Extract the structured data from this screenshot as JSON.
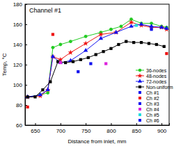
{
  "chart_data": {
    "type": "line",
    "title": "Channel #1",
    "x_label": "Distance from inlet, mm",
    "y_label": "Temp, °C",
    "xlim": [
      630,
      915
    ],
    "xticks": [
      650,
      700,
      750,
      800,
      850,
      900
    ],
    "ylim": [
      60,
      180
    ],
    "yticks": [
      60,
      80,
      100,
      120,
      140,
      160,
      180
    ],
    "legend": "lower right",
    "series": [
      {
        "name": "36-nodes",
        "type": "line",
        "color": "#22cc22",
        "marker": "circle",
        "line_style": "solid",
        "x": [
          635,
          660,
          675,
          685,
          700,
          720,
          750,
          780,
          800,
          820,
          840,
          860,
          880,
          900,
          910
        ],
        "values": [
          88,
          90,
          92,
          137,
          140,
          143,
          148,
          152,
          155,
          158,
          165,
          161,
          161,
          158,
          157
        ]
      },
      {
        "name": "48-nodes",
        "type": "line",
        "color": "#ee1111",
        "marker": "star",
        "line_style": "solid",
        "x": [
          635,
          660,
          675,
          685,
          700,
          720,
          750,
          780,
          810,
          840,
          860,
          880,
          900,
          910
        ],
        "values": [
          88,
          89,
          95,
          128,
          125,
          132,
          141,
          150,
          152,
          162,
          159,
          157,
          157,
          155
        ]
      },
      {
        "name": "72-nodes",
        "type": "line",
        "color": "#1111ee",
        "marker": "triangle",
        "line_style": "solid",
        "x": [
          635,
          660,
          675,
          685,
          700,
          720,
          750,
          780,
          810,
          840,
          860,
          880,
          900,
          910
        ],
        "values": [
          88,
          90,
          95,
          128,
          122,
          124,
          134,
          146,
          152,
          158,
          160,
          158,
          157,
          156
        ]
      },
      {
        "name": "Non-uniform",
        "type": "line",
        "color": "#000000",
        "marker": "square",
        "line_style": "solid",
        "x": [
          635,
          650,
          665,
          680,
          695,
          710,
          725,
          740,
          755,
          770,
          785,
          800,
          815,
          830,
          845,
          860,
          875,
          890,
          905
        ],
        "values": [
          88,
          88,
          95,
          103,
          123,
          122,
          123,
          125,
          127,
          130,
          133,
          136,
          140,
          143,
          142,
          142,
          141,
          140,
          138
        ]
      },
      {
        "name": "Ch #1",
        "type": "scatter",
        "color": "#1111ee",
        "marker": "square",
        "x": [
          735
        ],
        "values": [
          113
        ]
      },
      {
        "name": "Ch #2",
        "type": "scatter",
        "color": "#ee1111",
        "marker": "square",
        "x": [
          635,
          685,
          910
        ],
        "values": [
          78,
          150,
          131
        ]
      },
      {
        "name": "Ch #3",
        "type": "scatter",
        "color": "#1111ee",
        "marker": "square",
        "x": [
          760
        ],
        "values": [
          121
        ]
      },
      {
        "name": "Ch #4",
        "type": "scatter",
        "color": "#dd22dd",
        "marker": "square",
        "x": [
          700,
          790
        ],
        "values": [
          122,
          121
        ]
      },
      {
        "name": "Ch #5",
        "type": "scatter",
        "color": "#22dddd",
        "marker": "square",
        "x": [
          850
        ],
        "values": [
          159
        ]
      },
      {
        "name": "Ch #6",
        "type": "scatter",
        "color": "#1111ee",
        "marker": "square",
        "x": [
          880
        ],
        "values": [
          155
        ]
      }
    ]
  }
}
